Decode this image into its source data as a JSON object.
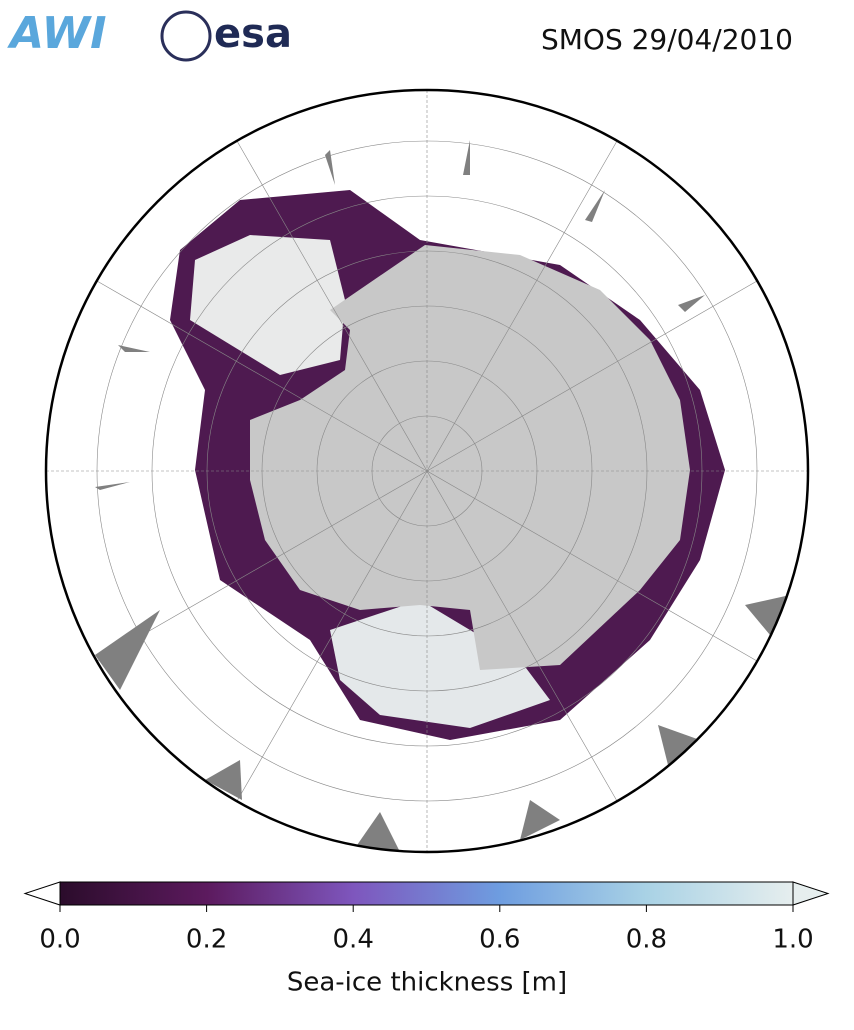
{
  "header": {
    "logos": [
      "AWI",
      "esa"
    ],
    "title": "SMOS 29/04/2010"
  },
  "colorbar": {
    "label": "Sea-ice thickness [m]",
    "range": [
      0,
      1
    ],
    "ticks": [
      {
        "value": 0,
        "label": "0.0"
      },
      0.2,
      0.4,
      0.6,
      0.8,
      {
        "value": 1,
        "label": "1.0"
      }
    ],
    "colors": [
      "#2b0c2b",
      "#5c1a5e",
      "#7e56bd",
      "#6e9de0",
      "#a9d2e5",
      "#e6eeee"
    ]
  }
}
